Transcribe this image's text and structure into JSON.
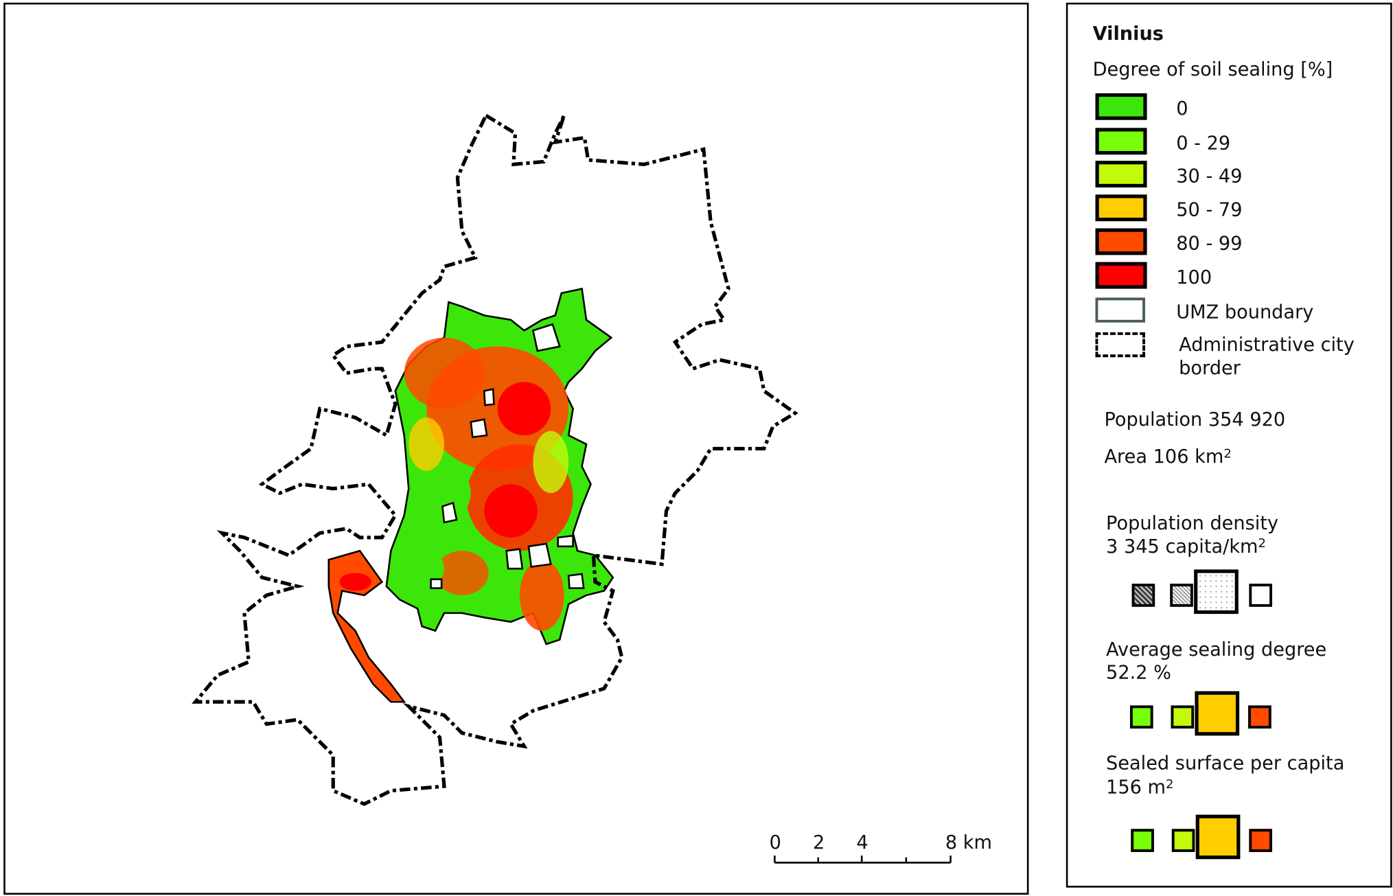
{
  "legend": {
    "title": "Vilnius",
    "heading": "Degree of soil sealing [%]",
    "classes": [
      {
        "label": "0",
        "color": "#3de60a"
      },
      {
        "label": "0 - 29",
        "color": "#78ff0a"
      },
      {
        "label": "30 - 49",
        "color": "#c3fa0a"
      },
      {
        "label": "50 - 79",
        "color": "#ffcd00"
      },
      {
        "label": "80 - 99",
        "color": "#ff4a00"
      },
      {
        "label": "100",
        "color": "#ff0000"
      }
    ],
    "umz_label": "UMZ boundary",
    "umz_color": "#4b5a5c",
    "admin_label_1": "Administrative city",
    "admin_label_2": "border"
  },
  "stats": {
    "population": "Population 354 920",
    "area": "Area 106 km",
    "area_sup": "2",
    "density_label": "Population density",
    "density_value": "3 345 capita/km",
    "density_sup": "2",
    "density_highlight_index": 2,
    "sealing_label": "Average sealing degree",
    "sealing_value": "52.2 %",
    "sealing_highlight_index": 2,
    "sealing_colors": [
      "#78ff0a",
      "#c3fa0a",
      "#ffcd00",
      "#ff4a00"
    ],
    "per_capita_label": "Sealed surface per capita",
    "per_capita_value": "156 m",
    "per_capita_sup": "2",
    "per_capita_highlight_index": 2
  },
  "scale_bar": {
    "labels": [
      "0",
      "2",
      "4",
      "8 km"
    ]
  }
}
